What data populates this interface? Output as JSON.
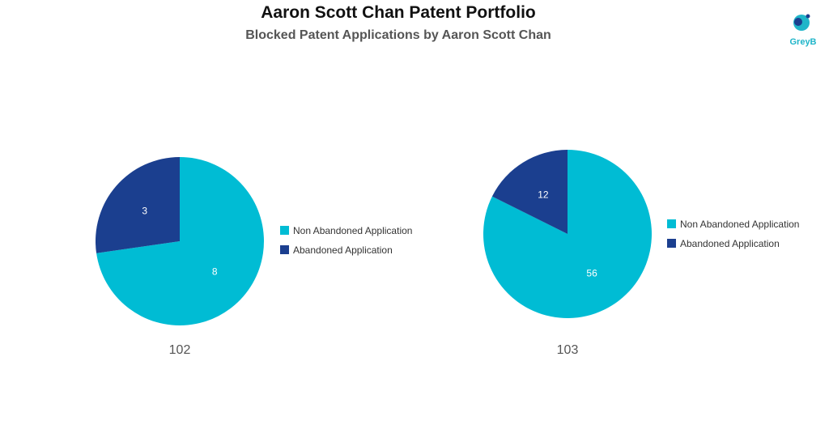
{
  "header": {
    "title": "Aaron Scott Chan Patent Portfolio",
    "subtitle": "Blocked Patent Applications by Aaron Scott Chan"
  },
  "logo": {
    "text": "GreyB",
    "color": "#1fb5c9"
  },
  "colors": {
    "non_abandoned": "#00bcd4",
    "abandoned": "#1b3f8f"
  },
  "chart_data": [
    {
      "type": "pie",
      "title": "102",
      "categories": [
        "Non Abandoned Application",
        "Abandoned Application"
      ],
      "values": [
        8,
        3
      ],
      "legend": "right"
    },
    {
      "type": "pie",
      "title": "103",
      "categories": [
        "Non Abandoned Application",
        "Abandoned Application"
      ],
      "values": [
        56,
        12
      ],
      "legend": "right"
    }
  ]
}
